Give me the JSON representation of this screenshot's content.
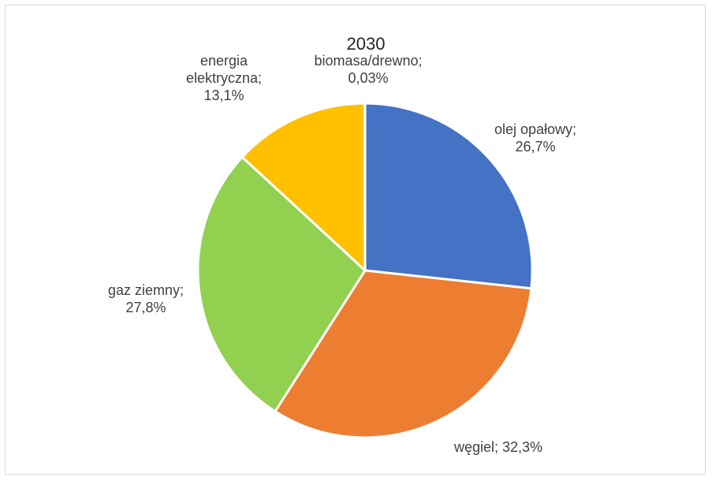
{
  "chart_data": {
    "type": "pie",
    "title": "2030",
    "slices": [
      {
        "name": "olej opałowy",
        "value": 26.7,
        "label": [
          "olej opałowy;",
          "26,7%"
        ],
        "color": "#4472c4"
      },
      {
        "name": "węgiel",
        "value": 32.3,
        "label": [
          "węgiel; 32,3%"
        ],
        "color": "#ed7d31"
      },
      {
        "name": "gaz ziemny",
        "value": 27.8,
        "label": [
          "gaz ziemny;",
          "27,8%"
        ],
        "color": "#92d050"
      },
      {
        "name": "energia elektryczna",
        "value": 13.1,
        "label": [
          "energia",
          "elektryczna;",
          "13,1%"
        ],
        "color": "#ffc000"
      },
      {
        "name": "biomasa/drewno",
        "value": 0.03,
        "label": [
          "biomasa/drewno;",
          "0,03%"
        ],
        "color": "#a5a5a5"
      }
    ]
  }
}
